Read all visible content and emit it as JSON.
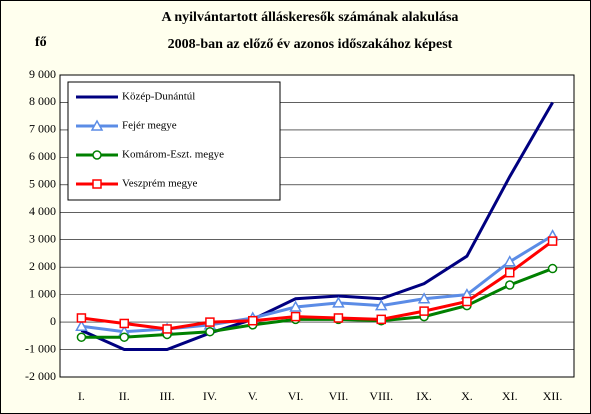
{
  "chart_data": {
    "type": "line",
    "title": "A nyilvántartott álláskeresők számának alakulása",
    "subtitle": "2008-ban az előző év azonos időszakához képest",
    "y_label": "fő",
    "categories": [
      "I.",
      "II.",
      "III.",
      "IV.",
      "V.",
      "VI.",
      "VII.",
      "VIII.",
      "IX.",
      "X.",
      "XI.",
      "XII."
    ],
    "series": [
      {
        "name": "Közép-Dunántúl",
        "color": "#000080",
        "marker": "none",
        "values": [
          -300,
          -1000,
          -1000,
          -400,
          100,
          850,
          950,
          850,
          1400,
          2400,
          5300,
          8000
        ]
      },
      {
        "name": "Fejér megye",
        "color": "#5b8ce6",
        "marker": "triangle",
        "values": [
          -150,
          -350,
          -250,
          -100,
          150,
          550,
          700,
          600,
          850,
          1000,
          2200,
          3150
        ]
      },
      {
        "name": "Komárom-Eszt. megye",
        "color": "#008000",
        "marker": "circle",
        "values": [
          -550,
          -550,
          -450,
          -350,
          -100,
          100,
          100,
          50,
          200,
          600,
          1350,
          1950
        ]
      },
      {
        "name": "Veszprém megye",
        "color": "#ff0000",
        "marker": "square",
        "values": [
          150,
          -50,
          -250,
          0,
          50,
          200,
          150,
          100,
          400,
          750,
          1800,
          2950
        ]
      }
    ],
    "ylim": [
      -2000,
      9000
    ],
    "yticks": [
      {
        "value": -2000,
        "label": "-2 000"
      },
      {
        "value": -1000,
        "label": "-1 000"
      },
      0,
      {
        "value": 1000,
        "label": "1 000"
      },
      {
        "value": 2000,
        "label": "2 000"
      },
      {
        "value": 3000,
        "label": "3 000"
      },
      {
        "value": 4000,
        "label": "4 000"
      },
      {
        "value": 5000,
        "label": "5 000"
      },
      {
        "value": 6000,
        "label": "6 000"
      },
      {
        "value": 7000,
        "label": "7 000"
      },
      {
        "value": 8000,
        "label": "8 000"
      },
      {
        "value": 9000,
        "label": "9 000"
      }
    ],
    "legend": "upper left"
  }
}
